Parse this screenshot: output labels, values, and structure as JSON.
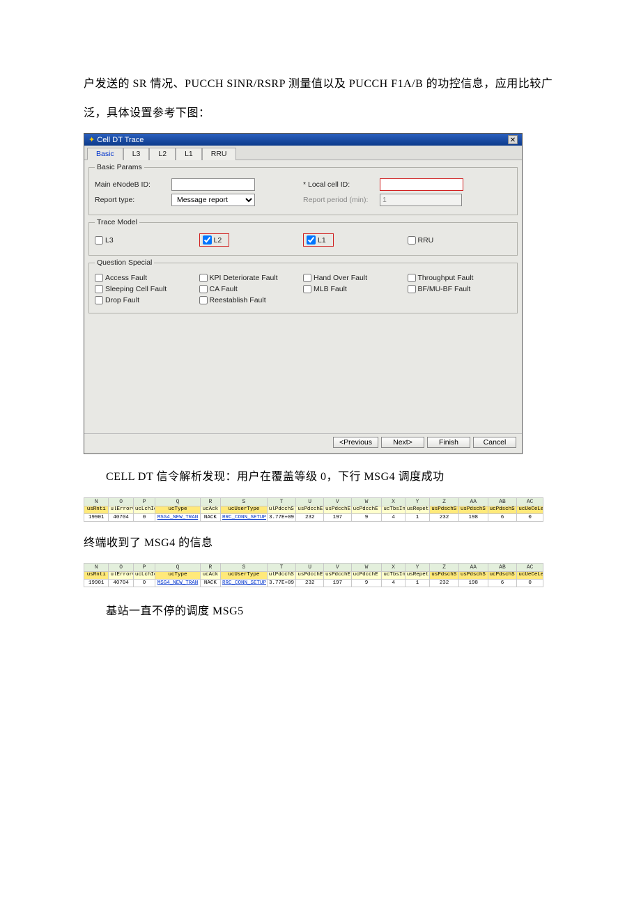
{
  "intro": {
    "p1": "户发送的 SR 情况、PUCCH  SINR/RSRP 测量值以及 PUCCH  F1A/B 的功控信息，应用比较广泛，具体设置参考下图："
  },
  "dialog": {
    "title": "Cell DT Trace",
    "tabs": {
      "basic": "Basic",
      "l3": "L3",
      "l2": "L2",
      "l1": "L1",
      "rru": "RRU"
    },
    "basic_params": {
      "legend": "Basic Params",
      "main_enb_label": "Main eNodeB ID:",
      "main_enb_value": "",
      "local_cell_label": "* Local cell ID:",
      "local_cell_value": "",
      "report_type_label": "Report type:",
      "report_type_value": "Message report",
      "report_period_label": "Report period (min):",
      "report_period_value": "1"
    },
    "trace_model": {
      "legend": "Trace Model",
      "l3": "L3",
      "l2": "L2",
      "l1": "L1",
      "rru": "RRU"
    },
    "question_special": {
      "legend": "Question Special",
      "access": "Access Fault",
      "kpi": "KPI Deteriorate Fault",
      "handover": "Hand Over Fault",
      "throughput": "Throughput Fault",
      "sleeping": "Sleeping Cell Fault",
      "ca": "CA Fault",
      "mlb": "MLB Fault",
      "bf": "BF/MU-BF Fault",
      "drop": "Drop Fault",
      "reestablish": "Reestablish Fault"
    },
    "buttons": {
      "prev": "<Previous",
      "next": "Next>",
      "finish": "Finish",
      "cancel": "Cancel"
    }
  },
  "mid1": "CELL  DT 信令解析发现：用户在覆盖等级 0，下行 MSG4 调度成功",
  "mid2": "终端收到了 MSG4 的信息",
  "mid3": "基站一直不停的调度 MSG5",
  "xl": {
    "colletters": [
      "N",
      "O",
      "P",
      "Q",
      "R",
      "S",
      "T",
      "U",
      "V",
      "W",
      "X",
      "Y",
      "Z",
      "AA",
      "AB",
      "AC"
    ],
    "hdr": [
      "usRnti",
      "ulErrorC ode",
      "ucLchId",
      "ucType",
      "ucAck",
      "ucUserType",
      "ulPdcchS tartTti",
      "usPdcchE ndHsfn",
      "usPdcchE ndSfn",
      "ucPdcchE ndSubFrm",
      "ucTbsInd ex",
      "usRepeti tionNum",
      "usPdschS tartHsfn",
      "usPdschS tartSfn",
      "ucPdschS tartSubF rm",
      "ucUeCeLe vel"
    ],
    "hl": [
      0,
      3,
      5,
      12,
      13,
      14,
      15
    ],
    "row": [
      "19901",
      "40704",
      "0",
      "MSG4_NEW_TRAN",
      "NACK",
      "RRC_CONN_SETUP",
      "3.77E+09",
      "232",
      "197",
      "9",
      "4",
      "1",
      "232",
      "198",
      "6",
      "0"
    ],
    "row0neg": "0"
  }
}
